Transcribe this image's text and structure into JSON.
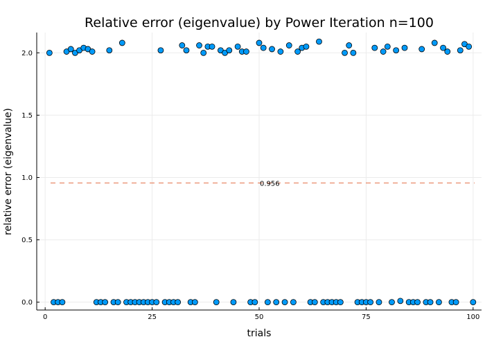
{
  "chart_data": {
    "type": "scatter",
    "title": "Relative error (eigenvalue) by Power Iteration  n=100",
    "xlabel": "trials",
    "ylabel": "relative error (eigenvalue)",
    "xlim": [
      -1.97,
      101.97
    ],
    "ylim": [
      -0.063,
      2.163
    ],
    "xticks": [
      0,
      25,
      50,
      75,
      100
    ],
    "xtick_labels": [
      "0",
      "25",
      "50",
      "75",
      "100"
    ],
    "yticks": [
      0,
      0.5,
      1,
      1.5,
      2
    ],
    "ytick_labels": [
      "0.0",
      "0.5",
      "1.0",
      "1.5",
      "2.0"
    ],
    "grid": true,
    "legend": "none",
    "series": [
      {
        "marker_color": "#009af9",
        "marker_edge_color": "#000000",
        "points": [
          [
            1,
            2.0
          ],
          [
            2,
            0.0
          ],
          [
            3,
            0.0
          ],
          [
            4,
            0.0
          ],
          [
            5,
            2.01
          ],
          [
            6,
            2.03
          ],
          [
            7,
            2.0
          ],
          [
            8,
            2.02
          ],
          [
            9,
            2.04
          ],
          [
            10,
            2.03
          ],
          [
            11,
            2.01
          ],
          [
            12,
            0.0
          ],
          [
            13,
            0.0
          ],
          [
            14,
            0.0
          ],
          [
            15,
            2.02
          ],
          [
            16,
            0.0
          ],
          [
            17,
            0.0
          ],
          [
            18,
            2.08
          ],
          [
            19,
            0.0
          ],
          [
            20,
            0.0
          ],
          [
            21,
            0.0
          ],
          [
            22,
            0.0
          ],
          [
            23,
            0.0
          ],
          [
            24,
            0.0
          ],
          [
            25,
            0.0
          ],
          [
            26,
            0.0
          ],
          [
            27,
            2.02
          ],
          [
            28,
            0.0
          ],
          [
            29,
            0.0
          ],
          [
            30,
            0.0
          ],
          [
            31,
            0.0
          ],
          [
            32,
            2.06
          ],
          [
            33,
            2.02
          ],
          [
            34,
            0.0
          ],
          [
            35,
            0.0
          ],
          [
            36,
            2.06
          ],
          [
            37,
            2.0
          ],
          [
            38,
            2.05
          ],
          [
            39,
            2.05
          ],
          [
            40,
            0.0
          ],
          [
            41,
            2.02
          ],
          [
            42,
            2.0
          ],
          [
            43,
            2.02
          ],
          [
            44,
            0.0
          ],
          [
            45,
            2.05
          ],
          [
            46,
            2.01
          ],
          [
            47,
            2.01
          ],
          [
            48,
            0.0
          ],
          [
            49,
            0.0
          ],
          [
            50,
            2.08
          ],
          [
            51,
            2.04
          ],
          [
            52,
            0.0
          ],
          [
            53,
            2.03
          ],
          [
            54,
            0.0
          ],
          [
            55,
            2.01
          ],
          [
            56,
            0.0
          ],
          [
            57,
            2.06
          ],
          [
            58,
            0.0
          ],
          [
            59,
            2.01
          ],
          [
            60,
            2.04
          ],
          [
            61,
            2.05
          ],
          [
            62,
            0.0
          ],
          [
            63,
            0.0
          ],
          [
            64,
            2.09
          ],
          [
            65,
            0.0
          ],
          [
            66,
            0.0
          ],
          [
            67,
            0.0
          ],
          [
            68,
            0.0
          ],
          [
            69,
            0.0
          ],
          [
            70,
            2.0
          ],
          [
            71,
            2.06
          ],
          [
            72,
            2.0
          ],
          [
            73,
            0.0
          ],
          [
            74,
            0.0
          ],
          [
            75,
            0.0
          ],
          [
            76,
            0.0
          ],
          [
            77,
            2.04
          ],
          [
            78,
            0.0
          ],
          [
            79,
            2.01
          ],
          [
            80,
            2.05
          ],
          [
            81,
            0.0
          ],
          [
            82,
            2.02
          ],
          [
            83,
            0.01
          ],
          [
            84,
            2.04
          ],
          [
            85,
            0.0
          ],
          [
            86,
            0.0
          ],
          [
            87,
            0.0
          ],
          [
            88,
            2.03
          ],
          [
            89,
            0.0
          ],
          [
            90,
            0.0
          ],
          [
            91,
            2.08
          ],
          [
            92,
            0.0
          ],
          [
            93,
            2.04
          ],
          [
            94,
            2.01
          ],
          [
            95,
            0.0
          ],
          [
            96,
            0.0
          ],
          [
            97,
            2.02
          ],
          [
            98,
            2.07
          ],
          [
            99,
            2.05
          ],
          [
            100,
            0.0
          ]
        ]
      }
    ],
    "reference_line": {
      "y": 0.956,
      "label": "0.956",
      "style": "dashed",
      "color": "#e26f46"
    }
  }
}
